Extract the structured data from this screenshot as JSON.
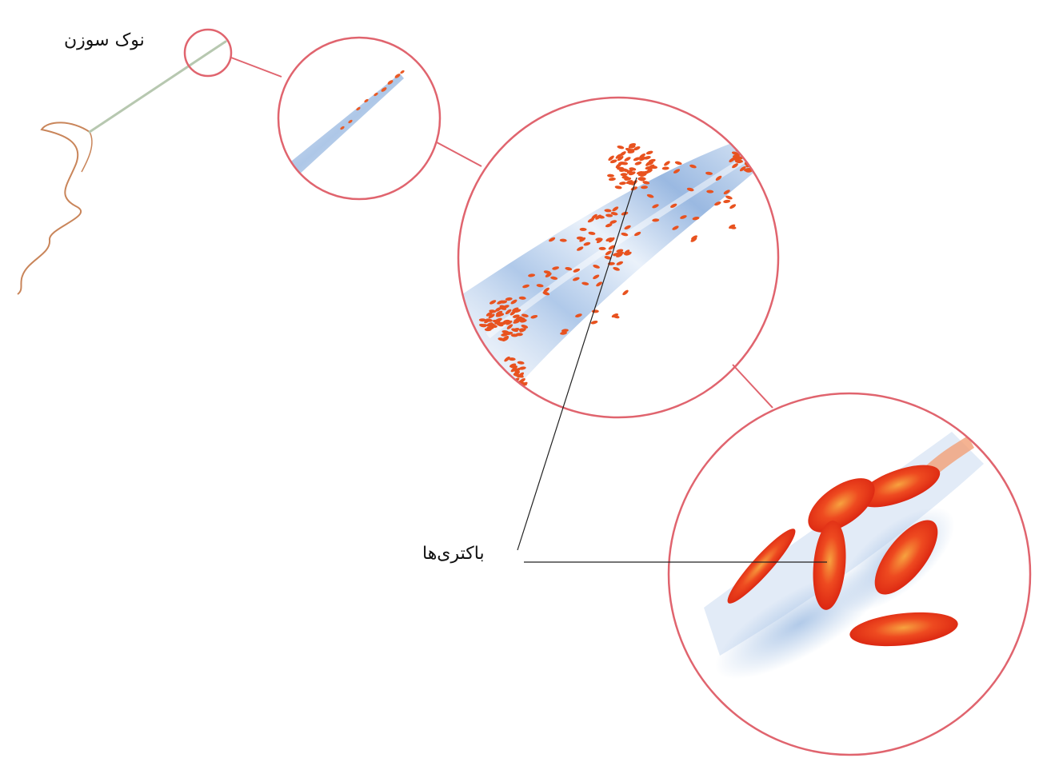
{
  "labels": {
    "needle_tip": "نوک سوزن",
    "bacteria": "باکتری‌ها"
  },
  "colors": {
    "circle_outline": "#e0646e",
    "bacteria_red": "#e8321a",
    "bacteria_highlight": "#f59a3c",
    "needle_blue": "#a9c4e6",
    "thread_brown": "#c9855a",
    "leader_line": "#222222"
  }
}
